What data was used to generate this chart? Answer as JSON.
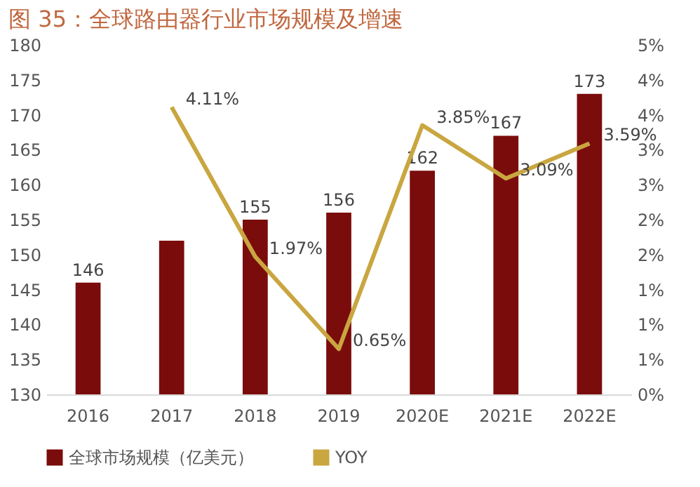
{
  "chart_data": {
    "type": "bar",
    "title": "图 35：全球路由器行业市场规模及增速",
    "categories": [
      "2016",
      "2017",
      "2018",
      "2019",
      "2020E",
      "2021E",
      "2022E"
    ],
    "series": [
      {
        "name": "全球市场规模（亿美元）",
        "color": "#7b0c0c",
        "values": [
          146,
          152,
          155,
          156,
          162,
          167,
          173
        ],
        "value_labels": [
          "146",
          null,
          "155",
          "156",
          "162",
          "167",
          "173"
        ]
      },
      {
        "name": "YOY",
        "type": "line",
        "axis": "y2",
        "color": "#c9a640",
        "values": [
          null,
          4.11,
          1.97,
          0.65,
          3.85,
          3.09,
          3.59
        ],
        "value_labels": [
          null,
          "4.11%",
          "1.97%",
          "0.65%",
          "3.85%",
          "3.09%",
          "3.59%"
        ]
      }
    ],
    "ylim": [
      130,
      180
    ],
    "yticks": [
      130,
      135,
      140,
      145,
      150,
      155,
      160,
      165,
      170,
      175,
      180
    ],
    "y2lim": [
      0,
      5
    ],
    "y2ticks": [
      {
        "value": 0,
        "label": "0%"
      },
      {
        "value": 0.5,
        "label": "1%"
      },
      {
        "value": 1,
        "label": "1%"
      },
      {
        "value": 1.5,
        "label": "1%"
      },
      {
        "value": 2,
        "label": "2%"
      },
      {
        "value": 2.5,
        "label": "2%"
      },
      {
        "value": 3,
        "label": "3%"
      },
      {
        "value": 3.5,
        "label": "3%"
      },
      {
        "value": 4,
        "label": "4%"
      },
      {
        "value": 4.5,
        "label": "4%"
      },
      {
        "value": 5,
        "label": "5%"
      }
    ],
    "legend": "bottom",
    "grid": false,
    "marker": "none"
  }
}
